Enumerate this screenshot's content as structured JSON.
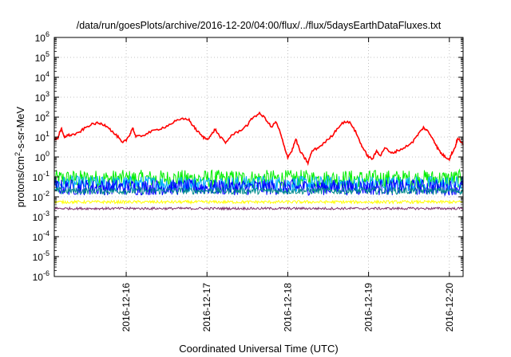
{
  "chart_data": {
    "type": "line",
    "title": "/data/run/goesPlots/archive/2016-12-20/04:00/flux/../flux/5daysEarthDataFluxes.txt",
    "xlabel": "Coordinated Universal Time (UTC)",
    "ylabel_main": "protons/cm",
    "ylabel_sup": "2",
    "ylabel_rest": "-s-sr-MeV",
    "yscale": "log",
    "ylim_exp": [
      -6,
      6
    ],
    "y_tick_base": "10",
    "y_tick_exponents": [
      "-6",
      "-5",
      "-4",
      "-3",
      "-2",
      "-1",
      "0",
      "1",
      "2",
      "3",
      "4",
      "5",
      "6"
    ],
    "x_range_days": [
      15.11,
      20.17
    ],
    "x_ticks": [
      {
        "day": 16,
        "label": "2016-12-16"
      },
      {
        "day": 17,
        "label": "2016-12-17"
      },
      {
        "day": 18,
        "label": "2016-12-18"
      },
      {
        "day": 19,
        "label": "2016-12-19"
      },
      {
        "day": 20,
        "label": "2016-12-20"
      }
    ],
    "grid": true,
    "legend": "none",
    "series": [
      {
        "color": "#ff0000",
        "kind": "smooth",
        "points": [
          [
            15.11,
            8
          ],
          [
            15.15,
            8
          ],
          [
            15.18,
            20
          ],
          [
            15.2,
            25
          ],
          [
            15.23,
            10
          ],
          [
            15.27,
            12
          ],
          [
            15.33,
            13
          ],
          [
            15.4,
            15
          ],
          [
            15.47,
            25
          ],
          [
            15.55,
            40
          ],
          [
            15.63,
            50
          ],
          [
            15.7,
            45
          ],
          [
            15.77,
            35
          ],
          [
            15.83,
            18
          ],
          [
            15.9,
            10
          ],
          [
            15.95,
            5
          ],
          [
            16.0,
            7
          ],
          [
            16.05,
            15
          ],
          [
            16.08,
            30
          ],
          [
            16.12,
            10
          ],
          [
            16.2,
            12
          ],
          [
            16.3,
            18
          ],
          [
            16.4,
            25
          ],
          [
            16.5,
            35
          ],
          [
            16.6,
            60
          ],
          [
            16.7,
            80
          ],
          [
            16.77,
            80
          ],
          [
            16.82,
            40
          ],
          [
            16.88,
            20
          ],
          [
            16.95,
            10
          ],
          [
            17.0,
            8
          ],
          [
            17.05,
            12
          ],
          [
            17.1,
            25
          ],
          [
            17.15,
            12
          ],
          [
            17.23,
            5
          ],
          [
            17.3,
            12
          ],
          [
            17.4,
            20
          ],
          [
            17.5,
            40
          ],
          [
            17.57,
            100
          ],
          [
            17.65,
            150
          ],
          [
            17.72,
            90
          ],
          [
            17.8,
            30
          ],
          [
            17.85,
            60
          ],
          [
            17.9,
            20
          ],
          [
            17.95,
            4
          ],
          [
            18.0,
            1
          ],
          [
            18.05,
            2
          ],
          [
            18.1,
            8
          ],
          [
            18.15,
            2
          ],
          [
            18.2,
            1
          ],
          [
            18.25,
            0.5
          ],
          [
            18.3,
            2
          ],
          [
            18.38,
            3
          ],
          [
            18.45,
            5
          ],
          [
            18.55,
            12
          ],
          [
            18.62,
            30
          ],
          [
            18.7,
            60
          ],
          [
            18.78,
            50
          ],
          [
            18.85,
            15
          ],
          [
            18.9,
            5
          ],
          [
            18.95,
            2
          ],
          [
            19.0,
            1
          ],
          [
            19.05,
            0.8
          ],
          [
            19.1,
            2
          ],
          [
            19.15,
            1.2
          ],
          [
            19.2,
            3
          ],
          [
            19.28,
            1.5
          ],
          [
            19.35,
            2
          ],
          [
            19.45,
            3
          ],
          [
            19.55,
            6
          ],
          [
            19.62,
            15
          ],
          [
            19.68,
            30
          ],
          [
            19.73,
            20
          ],
          [
            19.8,
            8
          ],
          [
            19.85,
            3
          ],
          [
            19.9,
            1.5
          ],
          [
            19.95,
            1
          ],
          [
            20.0,
            0.8
          ],
          [
            20.03,
            1.5
          ],
          [
            20.07,
            3
          ],
          [
            20.1,
            8
          ],
          [
            20.13,
            7
          ],
          [
            20.17,
            4
          ]
        ]
      },
      {
        "color": "#00ee00",
        "kind": "noisy",
        "center": 0.08,
        "spread": 0.9
      },
      {
        "color": "#00aaff",
        "kind": "noisy",
        "center": 0.045,
        "spread": 0.8
      },
      {
        "color": "#0000ff",
        "kind": "noisy",
        "center": 0.03,
        "spread": 0.8
      },
      {
        "color": "#008b8b",
        "kind": "noisy",
        "center": 0.02,
        "spread": 0.35
      },
      {
        "color": "#ffff00",
        "kind": "noisy",
        "center": 0.0055,
        "spread": 0.15
      },
      {
        "color": "#7b2d6b",
        "kind": "noisy",
        "center": 0.0026,
        "spread": 0.12
      }
    ]
  }
}
